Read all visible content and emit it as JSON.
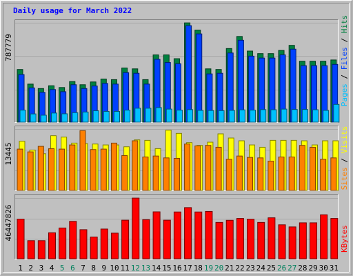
{
  "title": "Daily usage for March 2022",
  "colors": {
    "frame_bg": "#c0c0c0",
    "title": "#0000ff",
    "hits": "#008040",
    "files": "#0040ff",
    "pages": "#00c0ff",
    "visits": "#ffff00",
    "sites": "#ff8000",
    "kbytes": "#ff0000",
    "weekday": "#000000",
    "weekend": "#00805c"
  },
  "chart_data": [
    {
      "type": "bar",
      "panel": "requests",
      "max_label": "787779",
      "ylim": [
        0,
        787779
      ],
      "categories": [
        "1",
        "2",
        "3",
        "4",
        "5",
        "6",
        "7",
        "8",
        "9",
        "10",
        "11",
        "12",
        "13",
        "14",
        "15",
        "16",
        "17",
        "18",
        "19",
        "20",
        "21",
        "22",
        "23",
        "24",
        "25",
        "26",
        "27",
        "28",
        "29",
        "30",
        "31"
      ],
      "weekend_days": [
        "5",
        "6",
        "12",
        "13",
        "19",
        "20",
        "26",
        "27"
      ],
      "axis_label_parts": [
        "Pages",
        "Files",
        "Hits"
      ],
      "series": [
        {
          "name": "Hits",
          "values": [
            420000,
            305000,
            270000,
            292000,
            278000,
            325000,
            300000,
            322000,
            345000,
            340000,
            432000,
            425000,
            340000,
            535000,
            535000,
            505000,
            787000,
            730000,
            425000,
            420000,
            585000,
            680000,
            565000,
            545000,
            545000,
            570000,
            610000,
            485000,
            485000,
            485000,
            495000
          ]
        },
        {
          "name": "Files",
          "values": [
            380000,
            275000,
            240000,
            262000,
            245000,
            300000,
            270000,
            290000,
            310000,
            305000,
            395000,
            390000,
            305000,
            500000,
            475000,
            465000,
            765000,
            700000,
            385000,
            390000,
            550000,
            650000,
            525000,
            510000,
            510000,
            535000,
            580000,
            450000,
            450000,
            450000,
            460000
          ]
        },
        {
          "name": "Pages",
          "values": [
            100000,
            70000,
            60000,
            77000,
            71000,
            80000,
            85000,
            95000,
            90000,
            90000,
            100000,
            115000,
            115000,
            120000,
            108000,
            100000,
            104000,
            98000,
            97000,
            96000,
            98000,
            102000,
            100000,
            104000,
            103000,
            108000,
            105000,
            105000,
            103000,
            98000,
            145000
          ]
        }
      ]
    },
    {
      "type": "bar",
      "panel": "visitors",
      "max_label": "13445",
      "ylim": [
        0,
        13445
      ],
      "axis_label_parts": [
        "Sites",
        "Visits"
      ],
      "series": [
        {
          "name": "Visits",
          "values": [
            10800,
            8900,
            8100,
            12000,
            11700,
            10400,
            10300,
            10200,
            10000,
            10000,
            9600,
            11100,
            11000,
            9200,
            13200,
            12500,
            10500,
            9900,
            10600,
            12400,
            11500,
            10900,
            10000,
            9500,
            11000,
            11000,
            11000,
            10900,
            10000,
            10900,
            10900
          ]
        },
        {
          "name": "Sites",
          "values": [
            9100,
            8500,
            9700,
            9200,
            9100,
            10000,
            13100,
            9000,
            9100,
            10400,
            7700,
            10900,
            7400,
            7600,
            7200,
            7100,
            10200,
            9800,
            9900,
            9500,
            6900,
            7600,
            7300,
            7200,
            6500,
            7400,
            7400,
            9900,
            9500,
            6900,
            7200
          ]
        }
      ]
    },
    {
      "type": "bar",
      "panel": "kbytes",
      "max_label": "46447826",
      "ylim": [
        0,
        46447826
      ],
      "axis_label_parts": [
        "KBytes"
      ],
      "series": [
        {
          "name": "KBytes",
          "values": [
            30500000,
            14200000,
            14200000,
            20200000,
            23800000,
            28800000,
            22500000,
            17000000,
            23000000,
            19900000,
            29700000,
            46400000,
            30100000,
            36000000,
            29700000,
            35900000,
            39200000,
            35900000,
            36300000,
            28000000,
            29600000,
            31000000,
            30400000,
            28000000,
            31500000,
            26200000,
            24600000,
            27700000,
            27700000,
            33800000,
            31000000
          ]
        }
      ]
    }
  ]
}
